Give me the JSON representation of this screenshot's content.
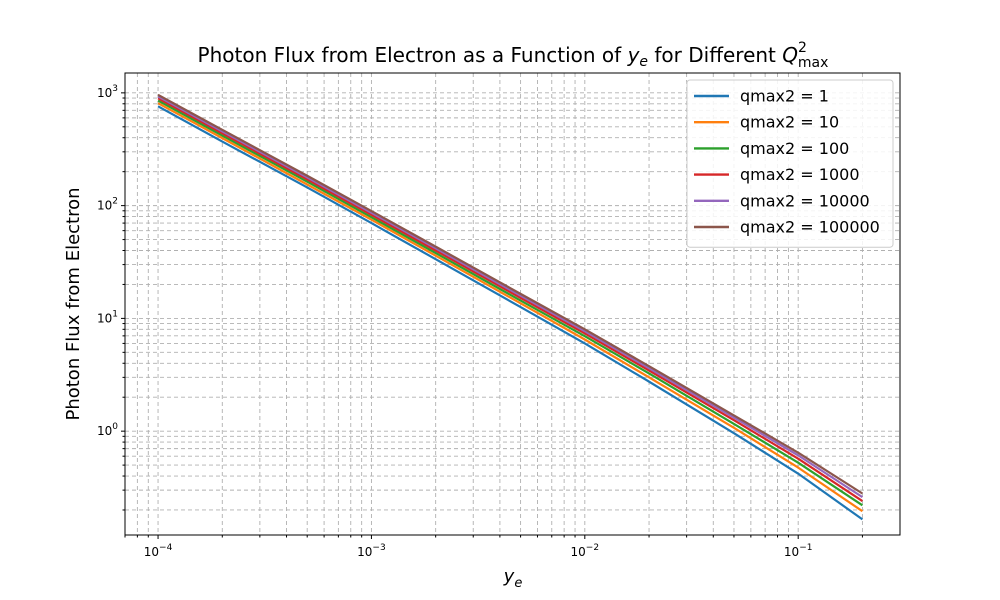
{
  "chart_data": {
    "type": "line",
    "title": {
      "prefix": "Photon Flux from Electron as a Function of ",
      "var": "y",
      "var_sub": "e",
      "middle": " for Different ",
      "q": "Q",
      "q_sup": "2",
      "q_sub": "max"
    },
    "xlabel": {
      "base": "y",
      "sub": "e"
    },
    "ylabel": "Photon Flux from Electron",
    "x_scale": "log",
    "y_scale": "log",
    "xlim": [
      7e-05,
      0.3
    ],
    "ylim": [
      0.12,
      1500
    ],
    "x_ticks": [
      {
        "value": 0.0001,
        "base": "10",
        "exp": "−4"
      },
      {
        "value": 0.001,
        "base": "10",
        "exp": "−3"
      },
      {
        "value": 0.01,
        "base": "10",
        "exp": "−2"
      },
      {
        "value": 0.1,
        "base": "10",
        "exp": "−1"
      }
    ],
    "y_ticks": [
      {
        "value": 1,
        "base": "10",
        "exp": "0"
      },
      {
        "value": 10,
        "base": "10",
        "exp": "1"
      },
      {
        "value": 100,
        "base": "10",
        "exp": "2"
      },
      {
        "value": 1000,
        "base": "10",
        "exp": "3"
      }
    ],
    "grid": true,
    "legend_position": "top-right",
    "x": [
      0.0001,
      0.0002,
      0.0005,
      0.001,
      0.002,
      0.005,
      0.01,
      0.02,
      0.05,
      0.1,
      0.2
    ],
    "series": [
      {
        "name": "qmax2 = 1",
        "color": "#1f77b4",
        "values": [
          760,
          370,
          145,
          70,
          33.5,
          12.6,
          6.0,
          2.75,
          0.96,
          0.42,
          0.165
        ]
      },
      {
        "name": "qmax2 = 10",
        "color": "#ff7f0e",
        "values": [
          810,
          397,
          154,
          75,
          36,
          13.6,
          6.5,
          3.0,
          1.07,
          0.475,
          0.195
        ]
      },
      {
        "name": "qmax2 = 100",
        "color": "#2ca02c",
        "values": [
          855,
          418,
          163,
          79,
          38,
          14.4,
          6.95,
          3.25,
          1.16,
          0.525,
          0.22
        ]
      },
      {
        "name": "qmax2 = 1000",
        "color": "#d62728",
        "values": [
          895,
          438,
          171,
          83,
          40,
          15.2,
          7.35,
          3.45,
          1.25,
          0.57,
          0.24
        ]
      },
      {
        "name": "qmax2 = 10000",
        "color": "#9467bd",
        "values": [
          930,
          455,
          178,
          86.5,
          41.8,
          15.9,
          7.7,
          3.62,
          1.32,
          0.61,
          0.26
        ]
      },
      {
        "name": "qmax2 = 100000",
        "color": "#8c564b",
        "values": [
          960,
          470,
          184,
          89.5,
          43.3,
          16.5,
          8.0,
          3.77,
          1.38,
          0.645,
          0.28
        ]
      }
    ]
  }
}
